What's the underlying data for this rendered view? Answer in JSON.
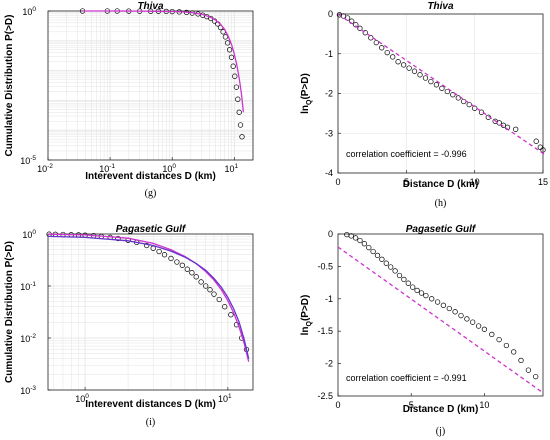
{
  "chart_data": [
    {
      "type": "scatter",
      "title": "Thiva",
      "xlabel": "Interevent distances D (km)",
      "ylabel": "Cumulative Distribution P(>D)",
      "panel_label": "(g)",
      "x_scale": "log",
      "y_scale": "log",
      "xlim": [
        0.01,
        20
      ],
      "ylim": [
        1e-05,
        1
      ],
      "x_ticks": [
        {
          "v": 0.01,
          "label": "10",
          "exp": "-2"
        },
        {
          "v": 0.1,
          "label": "10",
          "exp": "-1"
        },
        {
          "v": 1,
          "label": "10",
          "exp": "0"
        },
        {
          "v": 10,
          "label": "10",
          "exp": "1"
        }
      ],
      "y_ticks": [
        {
          "v": 1e-05,
          "label": "10",
          "exp": "-5"
        },
        {
          "v": 1,
          "label": "10",
          "exp": "0"
        }
      ],
      "grid": true,
      "series": [
        {
          "kind": "points",
          "color": "#000000",
          "x": [
            0.036,
            0.09,
            0.13,
            0.2,
            0.3,
            0.45,
            0.6,
            0.8,
            1.0,
            1.3,
            1.7,
            2.1,
            2.6,
            3.1,
            3.6,
            4.2,
            4.8,
            5.4,
            6.0,
            6.6,
            7.2,
            7.8,
            8.4,
            9.0,
            9.6,
            10.2,
            10.8,
            11.4,
            12.0,
            12.6,
            13.3
          ],
          "y": [
            1.0,
            0.998,
            0.997,
            0.995,
            0.99,
            0.985,
            0.98,
            0.97,
            0.955,
            0.93,
            0.9,
            0.86,
            0.8,
            0.73,
            0.65,
            0.56,
            0.46,
            0.37,
            0.28,
            0.2,
            0.135,
            0.085,
            0.05,
            0.028,
            0.014,
            0.0065,
            0.0028,
            0.0011,
            0.0004,
            0.00015,
            6e-05
          ]
        },
        {
          "kind": "line",
          "color": "#cc33cc",
          "x": [
            0.036,
            0.1,
            0.3,
            0.6,
            1.0,
            1.5,
            2.0,
            3.0,
            4.0,
            5.0,
            6.0,
            7.0,
            8.0,
            9.0,
            10.0,
            11.0,
            12.0,
            13.0,
            14.0
          ],
          "y": [
            1.0,
            0.998,
            0.99,
            0.98,
            0.96,
            0.93,
            0.89,
            0.78,
            0.64,
            0.5,
            0.36,
            0.24,
            0.14,
            0.075,
            0.036,
            0.015,
            0.0055,
            0.0017,
            0.0004
          ]
        }
      ]
    },
    {
      "type": "scatter",
      "title": "Thiva",
      "xlabel": "Distance D (km)",
      "ylabel_main": "ln",
      "ylabel_sub": "Q",
      "ylabel_rest": "(P>D)",
      "panel_label": "(h)",
      "xlim": [
        0,
        15
      ],
      "ylim": [
        -4,
        0
      ],
      "x_ticks": [
        0,
        5,
        10,
        15
      ],
      "y_ticks": [
        0,
        -1,
        -2,
        -3,
        -4
      ],
      "grid": true,
      "annotation": "correlation coefficient = -0.996",
      "series": [
        {
          "kind": "points",
          "color": "#000000",
          "x": [
            0.1,
            0.4,
            0.7,
            1.0,
            1.3,
            1.6,
            2.0,
            2.4,
            2.8,
            3.2,
            3.6,
            4.0,
            4.4,
            4.8,
            5.2,
            5.6,
            6.0,
            6.4,
            6.8,
            7.2,
            7.6,
            8.0,
            8.4,
            8.8,
            9.2,
            9.6,
            10.0,
            10.5,
            11.0,
            11.5,
            11.8,
            12.1,
            12.4,
            13.0,
            14.5,
            14.8,
            15.0
          ],
          "y": [
            -0.02,
            -0.05,
            -0.1,
            -0.18,
            -0.27,
            -0.36,
            -0.47,
            -0.6,
            -0.72,
            -0.85,
            -0.97,
            -1.08,
            -1.2,
            -1.28,
            -1.36,
            -1.44,
            -1.53,
            -1.61,
            -1.7,
            -1.78,
            -1.87,
            -1.95,
            -2.03,
            -2.11,
            -2.2,
            -2.28,
            -2.37,
            -2.47,
            -2.6,
            -2.7,
            -2.74,
            -2.8,
            -2.85,
            -2.9,
            -3.2,
            -3.35,
            -3.42
          ]
        },
        {
          "kind": "line",
          "dash": true,
          "color": "#cc33cc",
          "x": [
            0,
            15.2
          ],
          "y": [
            0,
            -3.55
          ]
        }
      ]
    },
    {
      "type": "scatter",
      "title": "Pagasetic Gulf",
      "xlabel": "Interevent distances D (km)",
      "ylabel": "Cumulative Distribution P(>D)",
      "panel_label": "(i)",
      "x_scale": "log",
      "y_scale": "log",
      "xlim": [
        0.55,
        15
      ],
      "ylim": [
        0.001,
        1
      ],
      "x_ticks": [
        {
          "v": 1,
          "label": "10",
          "exp": "0"
        },
        {
          "v": 10,
          "label": "10",
          "exp": "1"
        }
      ],
      "y_ticks": [
        {
          "v": 0.001,
          "label": "10",
          "exp": "-3"
        },
        {
          "v": 0.01,
          "label": "10",
          "exp": "-2"
        },
        {
          "v": 0.1,
          "label": "10",
          "exp": "-1"
        },
        {
          "v": 1,
          "label": "10",
          "exp": "0"
        }
      ],
      "grid": true,
      "series": [
        {
          "kind": "points",
          "color": "#000000",
          "x": [
            0.56,
            0.62,
            0.7,
            0.8,
            0.9,
            1.0,
            1.15,
            1.3,
            1.5,
            1.7,
            2.0,
            2.3,
            2.7,
            3.0,
            3.3,
            3.6,
            4.0,
            4.4,
            4.8,
            5.2,
            5.6,
            6.0,
            6.5,
            7.0,
            7.5,
            8.0,
            8.7,
            9.5,
            10.5,
            11.5,
            12.5,
            13.5
          ],
          "y": [
            0.99,
            0.985,
            0.98,
            0.97,
            0.96,
            0.95,
            0.93,
            0.9,
            0.86,
            0.82,
            0.76,
            0.69,
            0.6,
            0.53,
            0.46,
            0.4,
            0.34,
            0.29,
            0.25,
            0.21,
            0.18,
            0.15,
            0.12,
            0.1,
            0.085,
            0.07,
            0.055,
            0.04,
            0.028,
            0.018,
            0.01,
            0.006
          ]
        },
        {
          "kind": "line",
          "color": "#cc33cc",
          "x": [
            0.55,
            1.0,
            2.0,
            3.0,
            4.0,
            5.0,
            6.0,
            7.0,
            8.0,
            9.0,
            10.0,
            11.0,
            12.0,
            13.0,
            14.0
          ],
          "y": [
            0.99,
            0.96,
            0.83,
            0.66,
            0.5,
            0.37,
            0.27,
            0.19,
            0.13,
            0.085,
            0.052,
            0.03,
            0.016,
            0.008,
            0.0035
          ]
        },
        {
          "kind": "line",
          "color": "#6633cc",
          "x": [
            0.55,
            1.0,
            2.0,
            3.0,
            4.0,
            5.0,
            6.0,
            7.0,
            8.0,
            9.0,
            10.0,
            11.0,
            12.0,
            13.0,
            14.0
          ],
          "y": [
            0.9,
            0.86,
            0.74,
            0.6,
            0.47,
            0.36,
            0.27,
            0.2,
            0.14,
            0.095,
            0.06,
            0.036,
            0.02,
            0.0095,
            0.004
          ]
        }
      ]
    },
    {
      "type": "scatter",
      "title": "Pagasetic Gulf",
      "xlabel": "Distance D (km)",
      "ylabel_main": "ln",
      "ylabel_sub": "Q",
      "ylabel_rest": "(P>D)",
      "panel_label": "(j)",
      "xlim": [
        0,
        14
      ],
      "ylim": [
        -2.5,
        0
      ],
      "x_ticks": [
        0,
        5,
        10
      ],
      "y_ticks": [
        0,
        -0.5,
        -1,
        -1.5,
        -2,
        -2.5
      ],
      "grid": false,
      "annotation": "correlation coefficient = -0.991",
      "series": [
        {
          "kind": "points",
          "color": "#000000",
          "x": [
            0.6,
            0.9,
            1.2,
            1.5,
            1.8,
            2.1,
            2.4,
            2.7,
            3.0,
            3.3,
            3.6,
            3.9,
            4.2,
            4.5,
            4.8,
            5.1,
            5.4,
            5.7,
            6.0,
            6.4,
            6.8,
            7.2,
            7.6,
            8.0,
            8.4,
            8.8,
            9.2,
            9.6,
            10.0,
            10.5,
            11.0,
            11.5,
            12.0,
            12.5,
            13.0,
            13.5
          ],
          "y": [
            -0.01,
            -0.03,
            -0.06,
            -0.1,
            -0.15,
            -0.21,
            -0.27,
            -0.33,
            -0.39,
            -0.45,
            -0.51,
            -0.57,
            -0.64,
            -0.7,
            -0.76,
            -0.82,
            -0.87,
            -0.91,
            -0.95,
            -1.0,
            -1.05,
            -1.1,
            -1.15,
            -1.2,
            -1.26,
            -1.31,
            -1.36,
            -1.42,
            -1.47,
            -1.55,
            -1.63,
            -1.72,
            -1.82,
            -1.95,
            -2.1,
            -2.2
          ]
        },
        {
          "kind": "line",
          "dash": true,
          "color": "#cc33cc",
          "x": [
            0,
            14
          ],
          "y": [
            -0.2,
            -2.45
          ]
        }
      ]
    }
  ]
}
